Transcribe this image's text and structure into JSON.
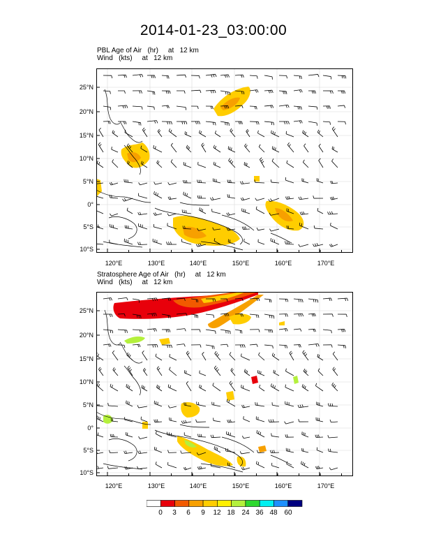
{
  "title": "2014-01-23_03:00:00",
  "panel_top": {
    "field_label": "PBL Age of Air   (hr)     at   12 km",
    "wind_label": "Wind   (kts)     at   12 km"
  },
  "panel_bottom": {
    "field_label": "Stratosphere Age of Air   (hr)     at   12 km",
    "wind_label": "Wind   (kts)     at   12 km"
  },
  "lat_labels": [
    "25°N",
    "20°N",
    "15°N",
    "10°N",
    "5°N",
    "0°",
    "5°S",
    "10°S"
  ],
  "lon_labels": [
    "120°E",
    "130°E",
    "140°E",
    "150°E",
    "160°E",
    "170°E"
  ],
  "colorbar": {
    "labels": [
      "0",
      "3",
      "6",
      "9",
      "12",
      "18",
      "24",
      "36",
      "48",
      "60"
    ],
    "colors": [
      "#ffffff",
      "#e8000b",
      "#f25a00",
      "#f7a000",
      "#ffcd00",
      "#fff000",
      "#b4f03c",
      "#2ed82e",
      "#00f0f0",
      "#1e90ff",
      "#000080"
    ]
  },
  "colors": {
    "pbl_fill": "#ffcd00",
    "pbl_fill_dark": "#f7a000",
    "strat_red": "#e8000b",
    "strat_orange": "#f25a00"
  }
}
